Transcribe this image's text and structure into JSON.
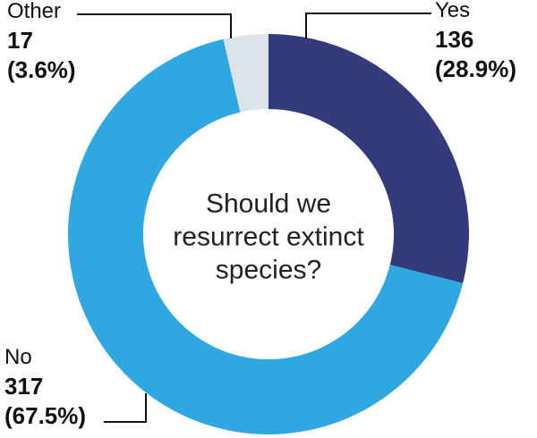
{
  "chart_data": {
    "type": "pie",
    "subtype": "donut",
    "title": "Should we resurrect extinct species?",
    "center_label_lines": [
      "Should we",
      "resurrect extinct",
      "species?"
    ],
    "categories": [
      "Yes",
      "No",
      "Other"
    ],
    "values": [
      136,
      317,
      17
    ],
    "percent_labels": [
      "(28.9%)",
      "(67.5%)",
      "(3.6%)"
    ],
    "colors": [
      "#343B7D",
      "#2FA8E1",
      "#DDE3EB"
    ],
    "start_angle_deg": 0,
    "direction": "clockwise",
    "legend_position": "callout-labels",
    "label_text_color": "#111111",
    "leader_line_color": "#111111",
    "background_color": "#ffffff"
  }
}
